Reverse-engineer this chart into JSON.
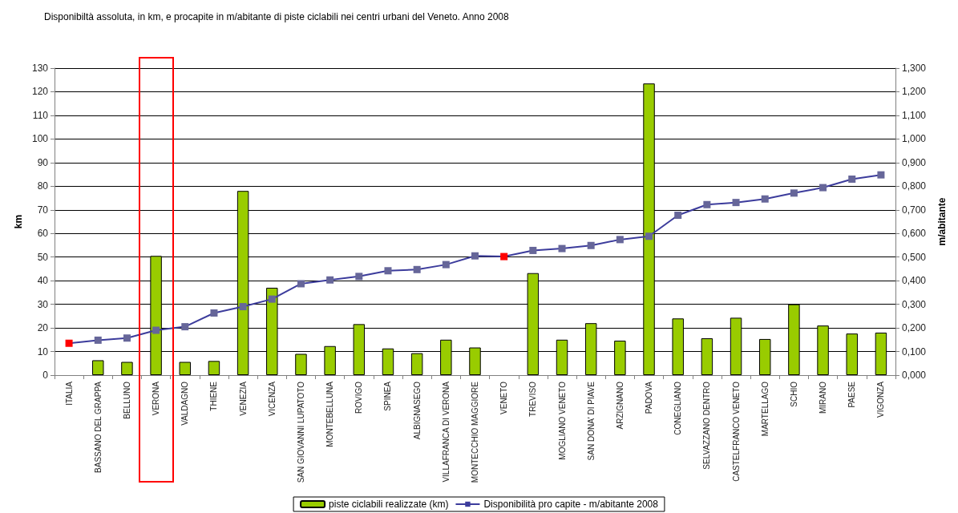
{
  "chart_data": {
    "type": "bar",
    "title": "Disponibiltà assoluta, in km, e procapite in m/abitante di piste ciclabili nei centri urbani del Veneto. Anno 2008",
    "categories": [
      "ITALIA",
      "BASSANO DEL GRAPPA",
      "BELLUNO",
      "VERONA",
      "VALDAGNO",
      "THIENE",
      "VENEZIA",
      "VICENZA",
      "SAN GIOVANNI LUPATOTO",
      "MONTEBELLUNA",
      "ROVIGO",
      "SPINEA",
      "ALBIGNASEGO",
      "VILLAFRANCA DI VERONA",
      "MONTECCHIO MAGGIORE",
      "VENETO",
      "TREVISO",
      "MOGLIANO VENETO",
      "SAN DONA' DI PIAVE",
      "ARZIGNANO",
      "PADOVA",
      "CONEGLIANO",
      "SELVAZZANO DENTRO",
      "CASTELFRANCO VENETO",
      "MARTELLAGO",
      "SCHIO",
      "MIRANO",
      "PAESE",
      "VIGONZA"
    ],
    "series": [
      {
        "name": "piste ciclabili realizzate (km)",
        "color": "#99cc00",
        "values": [
          null,
          6.3,
          5.6,
          50.5,
          5.6,
          6.0,
          78,
          37,
          9,
          12.3,
          21.6,
          11.3,
          9.3,
          15,
          11.7,
          null,
          43.2,
          15,
          22,
          14.6,
          123.5,
          24,
          15.6,
          24.3,
          15.3,
          30,
          21,
          17.6,
          18
        ]
      },
      {
        "name": "Disponibilità pro capite - m/abitante 2008",
        "type": "line",
        "axis": "y2",
        "color": "#3c3c9c",
        "colors": [
          "#ff0000",
          "#666699",
          "#666699",
          "#666699",
          "#666699",
          "#666699",
          "#666699",
          "#666699",
          "#666699",
          "#666699",
          "#666699",
          "#666699",
          "#666699",
          "#666699",
          "#666699",
          "#ff0000",
          "#666699",
          "#666699",
          "#666699",
          "#666699",
          "#666699",
          "#666699",
          "#666699",
          "#666699",
          "#666699",
          "#666699",
          "#666699",
          "#666699",
          "#666699"
        ],
        "values": [
          0.135,
          0.148,
          0.157,
          0.19,
          0.205,
          0.263,
          0.29,
          0.322,
          0.387,
          0.403,
          0.418,
          0.442,
          0.447,
          0.468,
          0.505,
          0.502,
          0.528,
          0.536,
          0.549,
          0.574,
          0.588,
          0.677,
          0.722,
          0.731,
          0.746,
          0.771,
          0.794,
          0.83,
          0.848
        ]
      }
    ],
    "ylabel": "km",
    "y2label": "m/abitante",
    "ylim": [
      0,
      130
    ],
    "yticks": [
      0,
      10,
      20,
      30,
      40,
      50,
      60,
      70,
      80,
      90,
      100,
      110,
      120,
      130
    ],
    "y2lim": [
      0,
      1.3
    ],
    "y2ticks": [
      {
        "value": 0,
        "label": "0,000"
      },
      {
        "value": 0.1,
        "label": "0,100"
      },
      {
        "value": 0.2,
        "label": "0,200"
      },
      {
        "value": 0.3,
        "label": "0,300"
      },
      {
        "value": 0.4,
        "label": "0,400"
      },
      {
        "value": 0.5,
        "label": "0,500"
      },
      {
        "value": 0.6,
        "label": "0,600"
      },
      {
        "value": 0.7,
        "label": "0,700"
      },
      {
        "value": 0.8,
        "label": "0,800"
      },
      {
        "value": 0.9,
        "label": "0,900"
      },
      {
        "value": 1.0,
        "label": "1,000"
      },
      {
        "value": 1.1,
        "label": "1,100"
      },
      {
        "value": 1.2,
        "label": "1,200"
      },
      {
        "value": 1.3,
        "label": "1,300"
      }
    ],
    "grid": "y",
    "legend": "bottom",
    "marker": "square",
    "line_style": "solid"
  }
}
